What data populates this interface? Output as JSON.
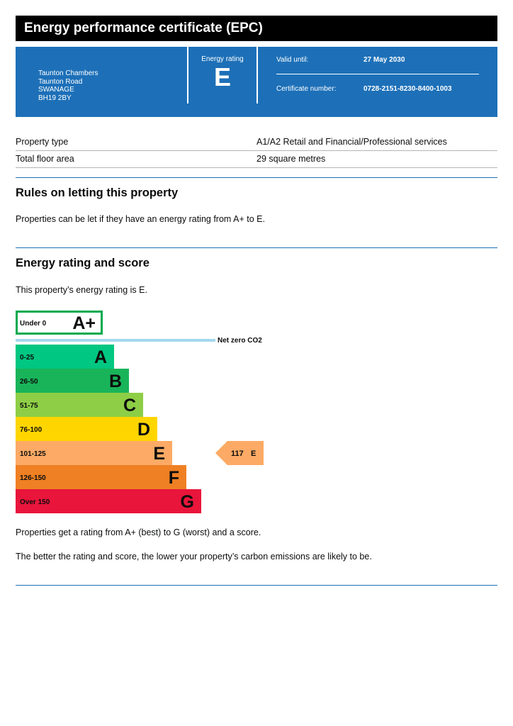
{
  "header": {
    "title": "Energy performance certificate (EPC)"
  },
  "summary": {
    "address": [
      "Taunton Chambers",
      "Taunton Road",
      "SWANAGE",
      "BH19 2BY"
    ],
    "energy_rating_label": "Energy rating",
    "energy_rating": "E",
    "valid_until_label": "Valid until:",
    "valid_until": "27 May 2030",
    "certificate_number_label": "Certificate number:",
    "certificate_number": "0728-2151-8230-8400-1003"
  },
  "property": [
    {
      "label": "Property type",
      "value": "A1/A2 Retail and Financial/Professional services"
    },
    {
      "label": "Total floor area",
      "value": "29 square metres"
    }
  ],
  "letting": {
    "heading": "Rules on letting this property",
    "text": "Properties can be let if they have an energy rating from A+ to E."
  },
  "rating_section": {
    "heading": "Energy rating and score",
    "intro": "This property’s energy rating is E.",
    "note1": "Properties get a rating from A+ (best) to G (worst) and a score.",
    "note2": "The better the rating and score, the lower your property’s carbon emissions are likely to be."
  },
  "chart_data": {
    "type": "bar",
    "bands": [
      {
        "range": "Under 0",
        "letter": "A+",
        "color": "#ffffff",
        "border": "#00a94f"
      },
      {
        "range": "0-25",
        "letter": "A",
        "color": "#00c781"
      },
      {
        "range": "26-50",
        "letter": "B",
        "color": "#19b459"
      },
      {
        "range": "51-75",
        "letter": "C",
        "color": "#8dce46"
      },
      {
        "range": "76-100",
        "letter": "D",
        "color": "#ffd500"
      },
      {
        "range": "101-125",
        "letter": "E",
        "color": "#fcaa65"
      },
      {
        "range": "126-150",
        "letter": "F",
        "color": "#ef8023"
      },
      {
        "range": "Over 150",
        "letter": "G",
        "color": "#e9153b"
      }
    ],
    "net_zero_label": "Net zero CO2",
    "net_zero_color": "#a5d8ee",
    "current": {
      "score": "117",
      "letter": "E",
      "color": "#fcaa65"
    }
  }
}
